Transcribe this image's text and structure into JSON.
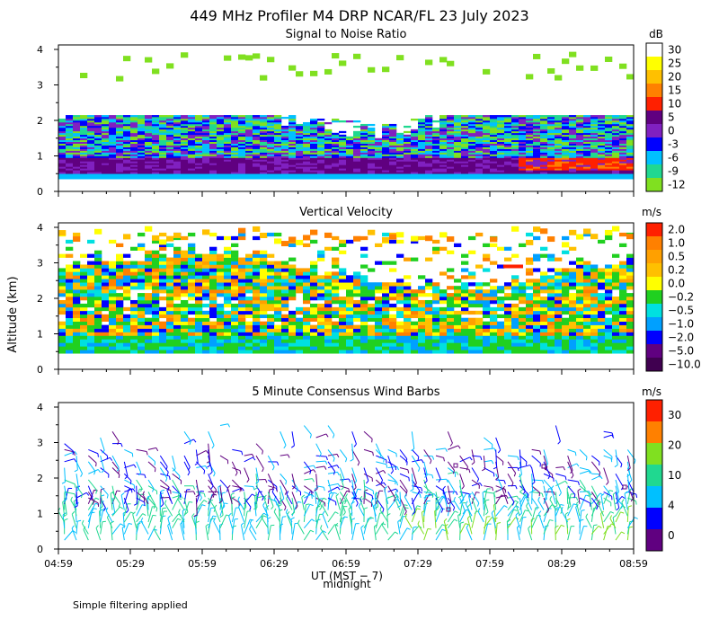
{
  "title": "449 MHz Profiler M4 DRP NCAR/FL 23 July 2023",
  "y_axis_label": "Altitude (km)",
  "x_axis": {
    "label": "UT (MST − 7)",
    "sublabel": "midnight",
    "ticks": [
      "04:59",
      "05:29",
      "05:59",
      "06:29",
      "06:59",
      "07:29",
      "07:59",
      "08:29",
      "08:59"
    ]
  },
  "footer_note": "Simple filtering applied",
  "chart_data": [
    {
      "type": "heatmap",
      "title": "Signal to Noise Ratio",
      "xlabel": "UT (MST − 7)",
      "ylabel": "Altitude (km)",
      "x_range_hours": [
        4.983,
        8.983
      ],
      "yticks": [
        "0",
        "1",
        "2",
        "3",
        "4"
      ],
      "ylim": [
        0,
        4
      ],
      "colorbar": {
        "unit": "dB",
        "labels": [
          "30",
          "25",
          "20",
          "15",
          "10",
          "5",
          "0",
          "-3",
          "-6",
          "-9",
          "-12"
        ],
        "colors": [
          "#ffffff",
          "#ffff00",
          "#ffc000",
          "#ff8000",
          "#ff2000",
          "#600080",
          "#8020c0",
          "#0000ff",
          "#00c0ff",
          "#20d890",
          "#80e020"
        ]
      }
    },
    {
      "type": "heatmap",
      "title": "Vertical Velocity",
      "xlabel": "UT (MST − 7)",
      "ylabel": "Altitude (km)",
      "yticks": [
        "0",
        "1",
        "2",
        "3",
        "4"
      ],
      "ylim": [
        0,
        4
      ],
      "colorbar": {
        "unit": "m/s",
        "labels": [
          "2.0",
          "1.0",
          "0.5",
          "0.2",
          "0.0",
          "−0.2",
          "−0.5",
          "−1.0",
          "−2.0",
          "−5.0",
          "−10.0"
        ],
        "colors": [
          "#ff2000",
          "#ff8000",
          "#ffa000",
          "#ffc000",
          "#ffff00",
          "#20d020",
          "#00e0e0",
          "#00a0ff",
          "#0000ff",
          "#600080",
          "#400050"
        ]
      }
    },
    {
      "type": "scatter",
      "title": "5 Minute Consensus Wind Barbs",
      "xlabel": "UT (MST − 7)",
      "ylabel": "Altitude (km)",
      "yticks": [
        "0",
        "1",
        "2",
        "3",
        "4"
      ],
      "ylim": [
        0,
        4
      ],
      "colorbar": {
        "unit": "m/s",
        "labels": [
          "30",
          "20",
          "10",
          "4",
          "0"
        ],
        "colors": [
          "#ff2000",
          "#ff8000",
          "#80e020",
          "#20d890",
          "#00c0ff",
          "#0000ff",
          "#600080"
        ]
      }
    }
  ]
}
